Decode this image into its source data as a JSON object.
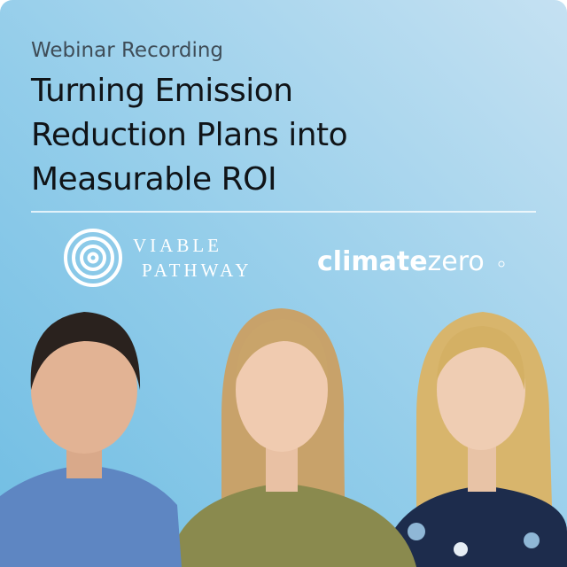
{
  "header": {
    "eyebrow": "Webinar Recording",
    "title_lines": [
      "Turning Emission",
      "Reduction Plans into",
      "Measurable ROI"
    ]
  },
  "logos": {
    "viable_pathway": [
      "VIABLE",
      "PATHWAY"
    ],
    "climatezero": {
      "strong": "climate",
      "light": "zero"
    }
  }
}
